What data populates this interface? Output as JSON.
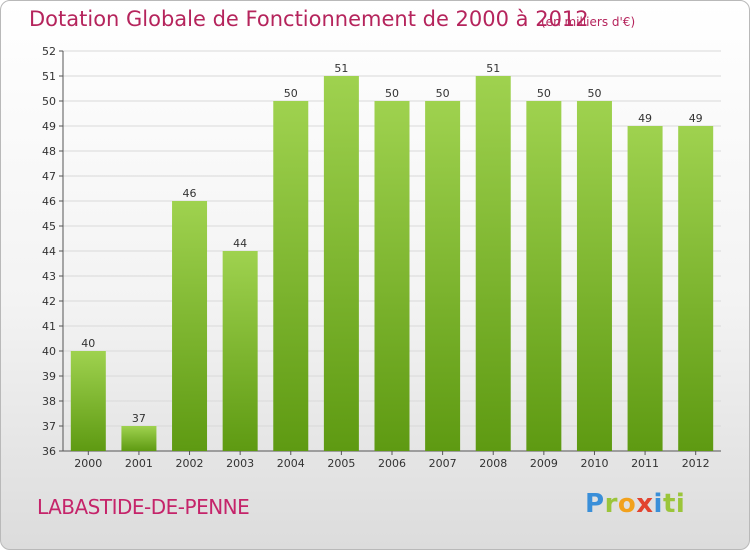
{
  "header": {
    "title": "Dotation Globale de Fonctionnement de 2000 à 2012",
    "subtitle": "(en milliers d'€)"
  },
  "footer": {
    "commune": "LABASTIDE-DE-PENNE",
    "brand_letters": [
      "P",
      "r",
      "o",
      "x",
      "i",
      "ti"
    ]
  },
  "colors": {
    "title": "#b5245c",
    "bar_light": "#9fd24f",
    "bar_dark": "#5e9a12",
    "grid": "#d9d9d9"
  },
  "chart_data": {
    "type": "bar",
    "title": "Dotation Globale de Fonctionnement de 2000 à 2012",
    "subtitle": "(en milliers d'€)",
    "xlabel": "",
    "ylabel": "",
    "categories": [
      "2000",
      "2001",
      "2002",
      "2003",
      "2004",
      "2005",
      "2006",
      "2007",
      "2008",
      "2009",
      "2010",
      "2011",
      "2012"
    ],
    "values": [
      40,
      37,
      46,
      44,
      50,
      51,
      50,
      50,
      51,
      50,
      50,
      49,
      49
    ],
    "ylim": [
      36,
      52
    ],
    "yticks": [
      36,
      37,
      38,
      39,
      40,
      41,
      42,
      43,
      44,
      45,
      46,
      47,
      48,
      49,
      50,
      51,
      52
    ],
    "grid": true,
    "data_labels": true
  }
}
